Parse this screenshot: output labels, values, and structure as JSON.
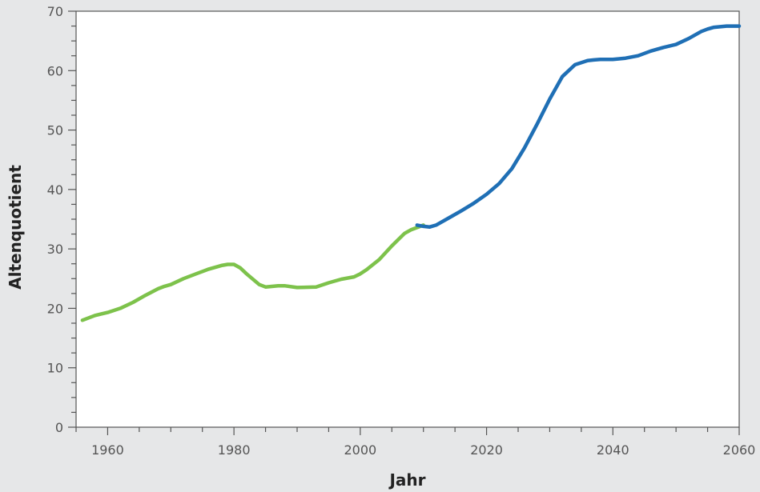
{
  "chart_data": {
    "type": "line",
    "title": "",
    "xlabel": "Jahr",
    "ylabel": "Altenquotient",
    "xlim": [
      1955,
      2060
    ],
    "ylim": [
      0,
      70
    ],
    "x_ticks": [
      1960,
      1980,
      2000,
      2020,
      2040,
      2060
    ],
    "y_ticks": [
      0,
      10,
      20,
      30,
      40,
      50,
      60,
      70
    ],
    "grid": false,
    "legend": "none",
    "series": [
      {
        "color": "#7dc24b",
        "x": [
          1956,
          1958,
          1960,
          1962,
          1964,
          1966,
          1968,
          1969,
          1970,
          1972,
          1974,
          1976,
          1978,
          1979,
          1980,
          1981,
          1982,
          1984,
          1985,
          1987,
          1988,
          1990,
          1993,
          1995,
          1997,
          1999,
          2000,
          2001,
          2003,
          2005,
          2007,
          2008,
          2009,
          2010
        ],
        "y": [
          18.0,
          18.8,
          19.3,
          20.0,
          21.0,
          22.2,
          23.3,
          23.7,
          24.0,
          25.0,
          25.8,
          26.6,
          27.2,
          27.4,
          27.4,
          26.8,
          25.8,
          24.0,
          23.6,
          23.8,
          23.8,
          23.5,
          23.6,
          24.3,
          24.9,
          25.3,
          25.8,
          26.5,
          28.2,
          30.5,
          32.6,
          33.2,
          33.6,
          34.0
        ]
      },
      {
        "color": "#1f6fb5",
        "x": [
          2009,
          2010,
          2011,
          2012,
          2014,
          2016,
          2018,
          2020,
          2022,
          2024,
          2026,
          2028,
          2030,
          2032,
          2034,
          2036,
          2037,
          2038,
          2040,
          2042,
          2044,
          2046,
          2048,
          2050,
          2052,
          2054,
          2055,
          2056,
          2058,
          2060
        ],
        "y": [
          34.0,
          33.8,
          33.7,
          34.0,
          35.2,
          36.4,
          37.7,
          39.2,
          41.0,
          43.5,
          47.0,
          51.0,
          55.2,
          59.0,
          61.0,
          61.7,
          61.8,
          61.9,
          61.9,
          62.1,
          62.5,
          63.3,
          63.9,
          64.4,
          65.4,
          66.6,
          67.0,
          67.3,
          67.5,
          67.5
        ]
      }
    ]
  }
}
